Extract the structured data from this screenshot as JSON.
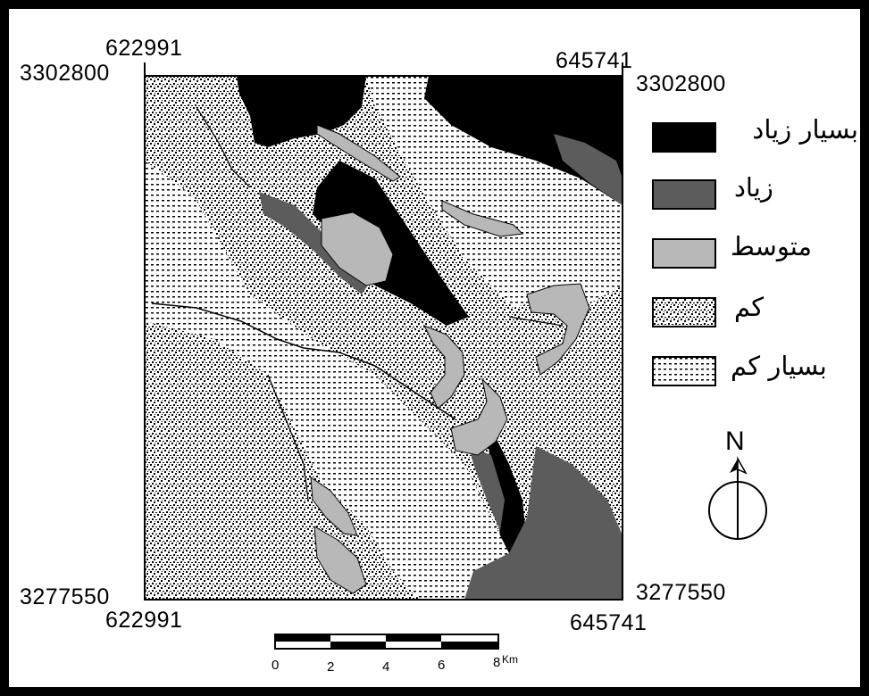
{
  "map": {
    "coords": {
      "top_left_x": "622991",
      "top_right_x": "645741",
      "top_left_y": "3302800",
      "top_right_y": "3302800",
      "bottom_left_y": "3277550",
      "bottom_right_y": "3277550",
      "bottom_left_x": "622991",
      "bottom_right_x": "645741"
    },
    "legend": [
      {
        "label": "بسیار زیاد",
        "fill": "#000000"
      },
      {
        "label": "زیاد",
        "fill": "#5c5c5c"
      },
      {
        "label": "متوسط",
        "fill": "#b8b8b8"
      },
      {
        "label": "کم",
        "fill": "pattern-dense"
      },
      {
        "label": "بسیار کم",
        "fill": "pattern-dots"
      }
    ],
    "scale": {
      "ticks": [
        "0",
        "2",
        "4",
        "6",
        "8"
      ],
      "unit": "Km"
    },
    "north": {
      "label": "N",
      "icon": "north-arrow-icon"
    }
  }
}
